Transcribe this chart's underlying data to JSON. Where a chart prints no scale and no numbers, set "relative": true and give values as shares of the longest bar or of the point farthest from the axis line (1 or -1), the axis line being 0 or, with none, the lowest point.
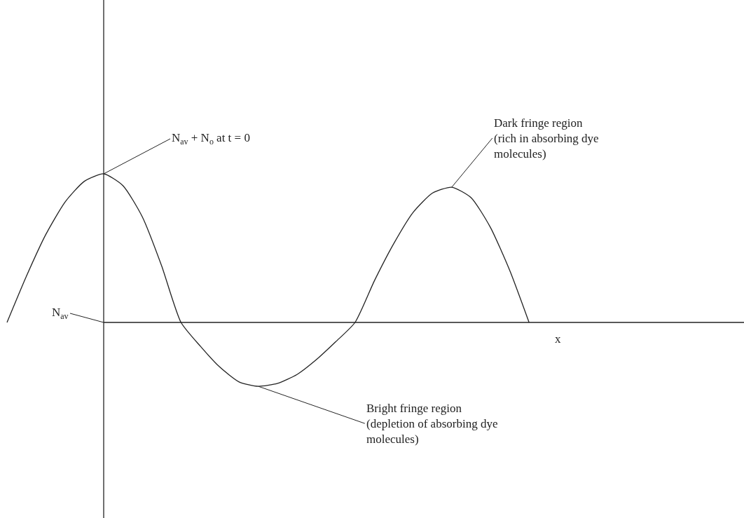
{
  "chart_data": {
    "type": "line",
    "relative": true,
    "xlabel": "x",
    "categories": [
      null,
      null,
      null,
      null,
      null,
      null,
      null,
      null,
      null,
      null,
      null,
      null,
      null,
      null,
      null,
      null,
      null,
      null,
      null,
      null,
      null,
      null,
      null,
      null,
      null,
      null,
      null,
      null
    ],
    "series": [
      {
        "color": "#222222",
        "values": [
          0,
          0.31,
          0.59,
          0.81,
          0.95,
          1,
          0.92,
          0.71,
          0.38,
          0,
          -0.16,
          -0.3,
          -0.4,
          -0.43,
          -0.41,
          -0.35,
          -0.25,
          -0.13,
          0,
          0.28,
          0.53,
          0.74,
          0.87,
          0.91,
          0.84,
          0.64,
          0.35,
          0
        ]
      }
    ],
    "annotations": [
      "N$_{av}$ + N$_{o}$ at t = 0",
      "Dark fringe region\n(rich in absorbing dye\nmolecules)",
      "Bright fringe region\n(depletion of absorbing dye\nmolecules)",
      "N$_{av}$"
    ],
    "marker": "none",
    "line_style": "solid"
  }
}
